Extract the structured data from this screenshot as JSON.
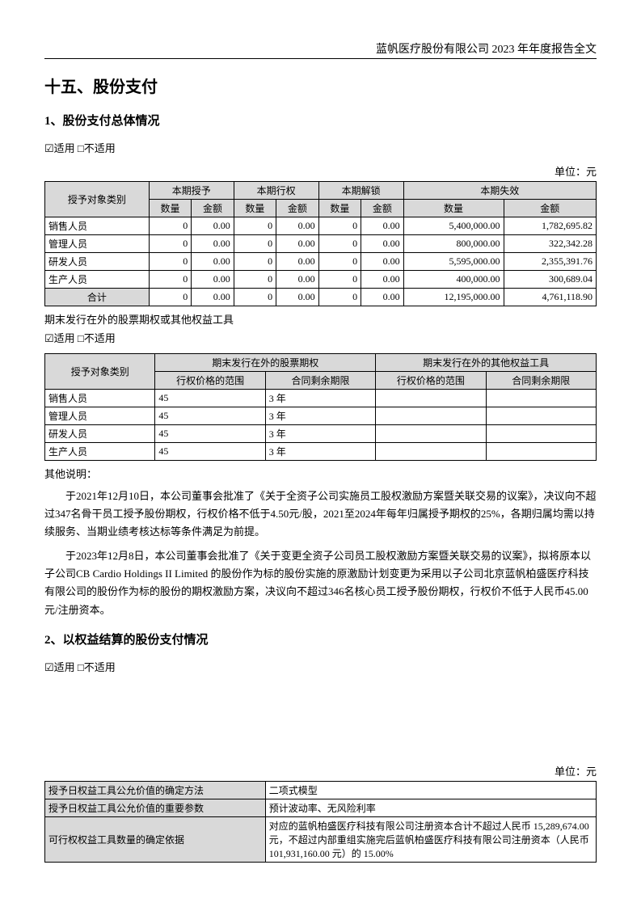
{
  "header": "蓝帆医疗股份有限公司 2023 年年度报告全文",
  "sec_title": "十五、股份支付",
  "sub1": {
    "title": "1、股份支付总体情况",
    "check": "☑适用 □不适用"
  },
  "unit": "单位：元",
  "t1": {
    "head_group": [
      "本期授予",
      "本期行权",
      "本期解锁",
      "本期失效"
    ],
    "row_head": "授予对象类别",
    "cols": [
      "数量",
      "金额",
      "数量",
      "金额",
      "数量",
      "金额",
      "数量",
      "金额"
    ],
    "rows": [
      {
        "cat": "销售人员",
        "v": [
          "0",
          "0.00",
          "0",
          "0.00",
          "0",
          "0.00",
          "5,400,000.00",
          "1,782,695.82"
        ]
      },
      {
        "cat": "管理人员",
        "v": [
          "0",
          "0.00",
          "0",
          "0.00",
          "0",
          "0.00",
          "800,000.00",
          "322,342.28"
        ]
      },
      {
        "cat": "研发人员",
        "v": [
          "0",
          "0.00",
          "0",
          "0.00",
          "0",
          "0.00",
          "5,595,000.00",
          "2,355,391.76"
        ]
      },
      {
        "cat": "生产人员",
        "v": [
          "0",
          "0.00",
          "0",
          "0.00",
          "0",
          "0.00",
          "400,000.00",
          "300,689.04"
        ]
      }
    ],
    "total": {
      "cat": "合计",
      "v": [
        "0",
        "0.00",
        "0",
        "0.00",
        "0",
        "0.00",
        "12,195,000.00",
        "4,761,118.90"
      ]
    }
  },
  "note1": "期末发行在外的股票期权或其他权益工具",
  "check2": "☑适用 □不适用",
  "t2": {
    "row_head": "授予对象类别",
    "g1": "期末发行在外的股票期权",
    "g2": "期末发行在外的其他权益工具",
    "c1": "行权价格的范围",
    "c2": "合同剩余期限",
    "c3": "行权价格的范围",
    "c4": "合同剩余期限",
    "rows": [
      {
        "cat": "销售人员",
        "a": "45",
        "b": "3 年",
        "c": "",
        "d": ""
      },
      {
        "cat": "管理人员",
        "a": "45",
        "b": "3 年",
        "c": "",
        "d": ""
      },
      {
        "cat": "研发人员",
        "a": "45",
        "b": "3 年",
        "c": "",
        "d": ""
      },
      {
        "cat": "生产人员",
        "a": "45",
        "b": "3 年",
        "c": "",
        "d": ""
      }
    ]
  },
  "other_note": "其他说明：",
  "para1": "于2021年12月10日，本公司董事会批准了《关于全资子公司实施员工股权激励方案暨关联交易的议案》，决议向不超过347名骨干员工授予股份期权，行权价格不低于4.50元/股，2021至2024年每年归属授予期权的25%，各期归属均需以持续服务、当期业绩考核达标等条件满足为前提。",
  "para2": "于2023年12月8日，本公司董事会批准了《关于变更全资子公司员工股权激励方案暨关联交易的议案》，拟将原本以子公司CB Cardio Holdings II  Limited  的股份作为标的股份实施的原激励计划变更为采用以子公司北京蓝帆柏盛医疗科技有限公司的股份作为标的股份的期权激励方案，决议向不超过346名核心员工授予股份期权，行权价不低于人民币45.00元/注册资本。",
  "sub2": {
    "title": "2、以权益结算的股份支付情况",
    "check": "☑适用 □不适用"
  },
  "t3": {
    "rows": [
      {
        "k": "授予日权益工具公允价值的确定方法",
        "v": "二项式模型"
      },
      {
        "k": "授予日权益工具公允价值的重要参数",
        "v": "预计波动率、无风险利率"
      },
      {
        "k": "可行权权益工具数量的确定依据",
        "v": "对应的蓝帆柏盛医疗科技有限公司注册资本合计不超过人民币 15,289,674.00 元，不超过内部重组实施完后蓝帆柏盛医疗科技有限公司注册资本（人民币 101,931,160.00 元）的 15.00%"
      }
    ]
  }
}
